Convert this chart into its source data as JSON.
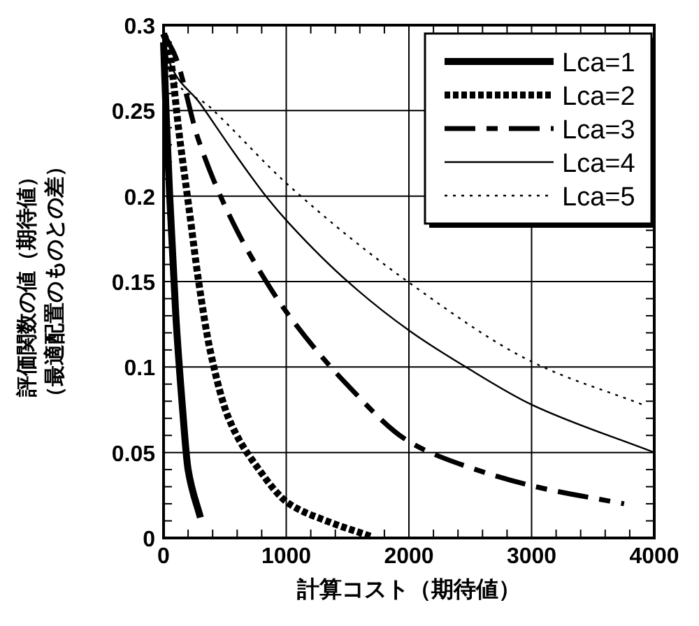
{
  "chart_data": {
    "type": "line",
    "xlabel": "計算コスト（期待値）",
    "ylabel": "評価関数の値（期待値）（最適配置のものとの差）",
    "xlim": [
      0,
      4000
    ],
    "xticks": [
      0,
      1000,
      2000,
      3000,
      4000
    ],
    "ylim": [
      0,
      0.3
    ],
    "yticks": [
      0,
      0.05,
      0.1,
      0.15,
      0.2,
      0.25,
      0.3
    ],
    "grid": true,
    "legend": "top right",
    "series": [
      {
        "name": "Lca=1",
        "color": "#000000",
        "line_style": "solid",
        "x": [
          0,
          20,
          50,
          100,
          150,
          200,
          300
        ],
        "values": [
          0.29,
          0.25,
          0.2,
          0.13,
          0.08,
          0.04,
          0.012
        ]
      },
      {
        "name": "Lca=2",
        "color": "#000000",
        "line_style": "dotted",
        "x": [
          0,
          38,
          133,
          209,
          284,
          379,
          531,
          758,
          1024,
          1327,
          1687
        ],
        "values": [
          0.295,
          0.288,
          0.233,
          0.192,
          0.151,
          0.11,
          0.07,
          0.042,
          0.02,
          0.01,
          0.001
        ]
      },
      {
        "name": "Lca=3",
        "color": "#000000",
        "line_style": "dashed",
        "x": [
          0,
          95,
          284,
          569,
          872,
          1024,
          1479,
          2009,
          2464,
          3033,
          3754
        ],
        "values": [
          0.295,
          0.282,
          0.233,
          0.184,
          0.146,
          0.13,
          0.091,
          0.056,
          0.042,
          0.03,
          0.02
        ]
      },
      {
        "name": "Lca=4",
        "color": "#000000",
        "line_style": "solid",
        "x": [
          0,
          38,
          300,
          569,
          834,
          1024,
          1517,
          2009,
          2464,
          3000,
          4000
        ],
        "values": [
          0.295,
          0.28,
          0.254,
          0.226,
          0.2,
          0.184,
          0.149,
          0.121,
          0.1,
          0.078,
          0.05
        ]
      },
      {
        "name": "Lca=5",
        "color": "#000000",
        "line_style": "dotted",
        "x": [
          0,
          38,
          379,
          1024,
          2009,
          3033,
          3905
        ],
        "values": [
          0.295,
          0.274,
          0.252,
          0.206,
          0.149,
          0.102,
          0.078
        ]
      }
    ]
  }
}
